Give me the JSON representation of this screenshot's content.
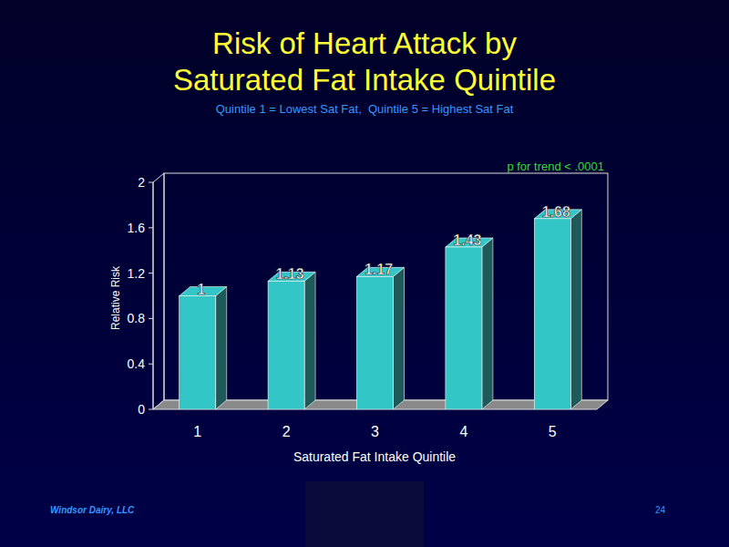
{
  "chart_data": {
    "type": "bar",
    "title": "Risk of Heart Attack by Saturated Fat Intake Quintile",
    "subtitle": "Quintile 1 = Lowest Sat Fat,  Quintile 5 = Highest Sat Fat",
    "annotations": [
      "p for trend < .0001"
    ],
    "x_label": "Saturated Fat Intake Quintile",
    "y_label": "Relative Risk",
    "categories": [
      "1",
      "2",
      "3",
      "4",
      "5"
    ],
    "values": [
      1,
      1.13,
      1.17,
      1.43,
      1.68
    ],
    "color": "#33c6c6",
    "ylim": [
      0,
      2
    ],
    "yticks": [
      0,
      0.4,
      0.8,
      1.2,
      1.6,
      2
    ],
    "grid": false,
    "data_labels": true
  },
  "footer": {
    "left": "Windsor Dairy, LLC",
    "page_number": 24
  }
}
